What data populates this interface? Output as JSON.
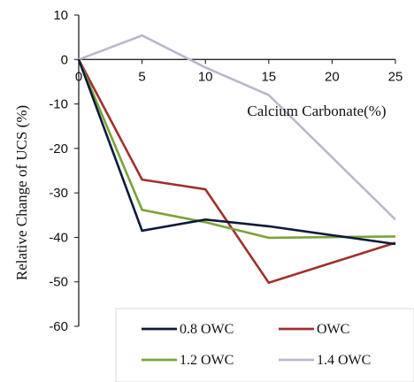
{
  "chart_data": {
    "type": "line",
    "title": "",
    "xlabel": "Calcium Carbonate(%)",
    "ylabel": "Relative Change of UCS (%)",
    "x": [
      0,
      5,
      10,
      15,
      20,
      25
    ],
    "xlim": [
      0,
      25
    ],
    "ylim": [
      -60,
      10
    ],
    "x_ticks": [
      0,
      5,
      10,
      15,
      20,
      25
    ],
    "y_ticks": [
      10,
      0,
      -10,
      -20,
      -30,
      -40,
      -50,
      -60
    ],
    "grid": false,
    "legend_position": "bottom-right",
    "series": [
      {
        "name": "0.8 OWC",
        "color": "#0d1a3a",
        "x": [
          0,
          5,
          10,
          15,
          25
        ],
        "values": [
          0,
          -38.5,
          -36,
          -37.5,
          -41.5
        ]
      },
      {
        "name": "OWC",
        "color": "#a0302c",
        "x": [
          0,
          5,
          10,
          15,
          25
        ],
        "values": [
          0,
          -27,
          -29.2,
          -50.2,
          -41.2
        ]
      },
      {
        "name": "1.2 OWC",
        "color": "#7aa43a",
        "x": [
          0,
          5,
          10,
          15,
          25
        ],
        "values": [
          0,
          -33.8,
          -36.6,
          -40.1,
          -39.8
        ]
      },
      {
        "name": "1.4 OWC",
        "color": "#b9b9cc",
        "x": [
          0,
          5,
          10,
          15,
          25
        ],
        "values": [
          0,
          5.4,
          -1.8,
          -8,
          -36
        ]
      }
    ]
  }
}
